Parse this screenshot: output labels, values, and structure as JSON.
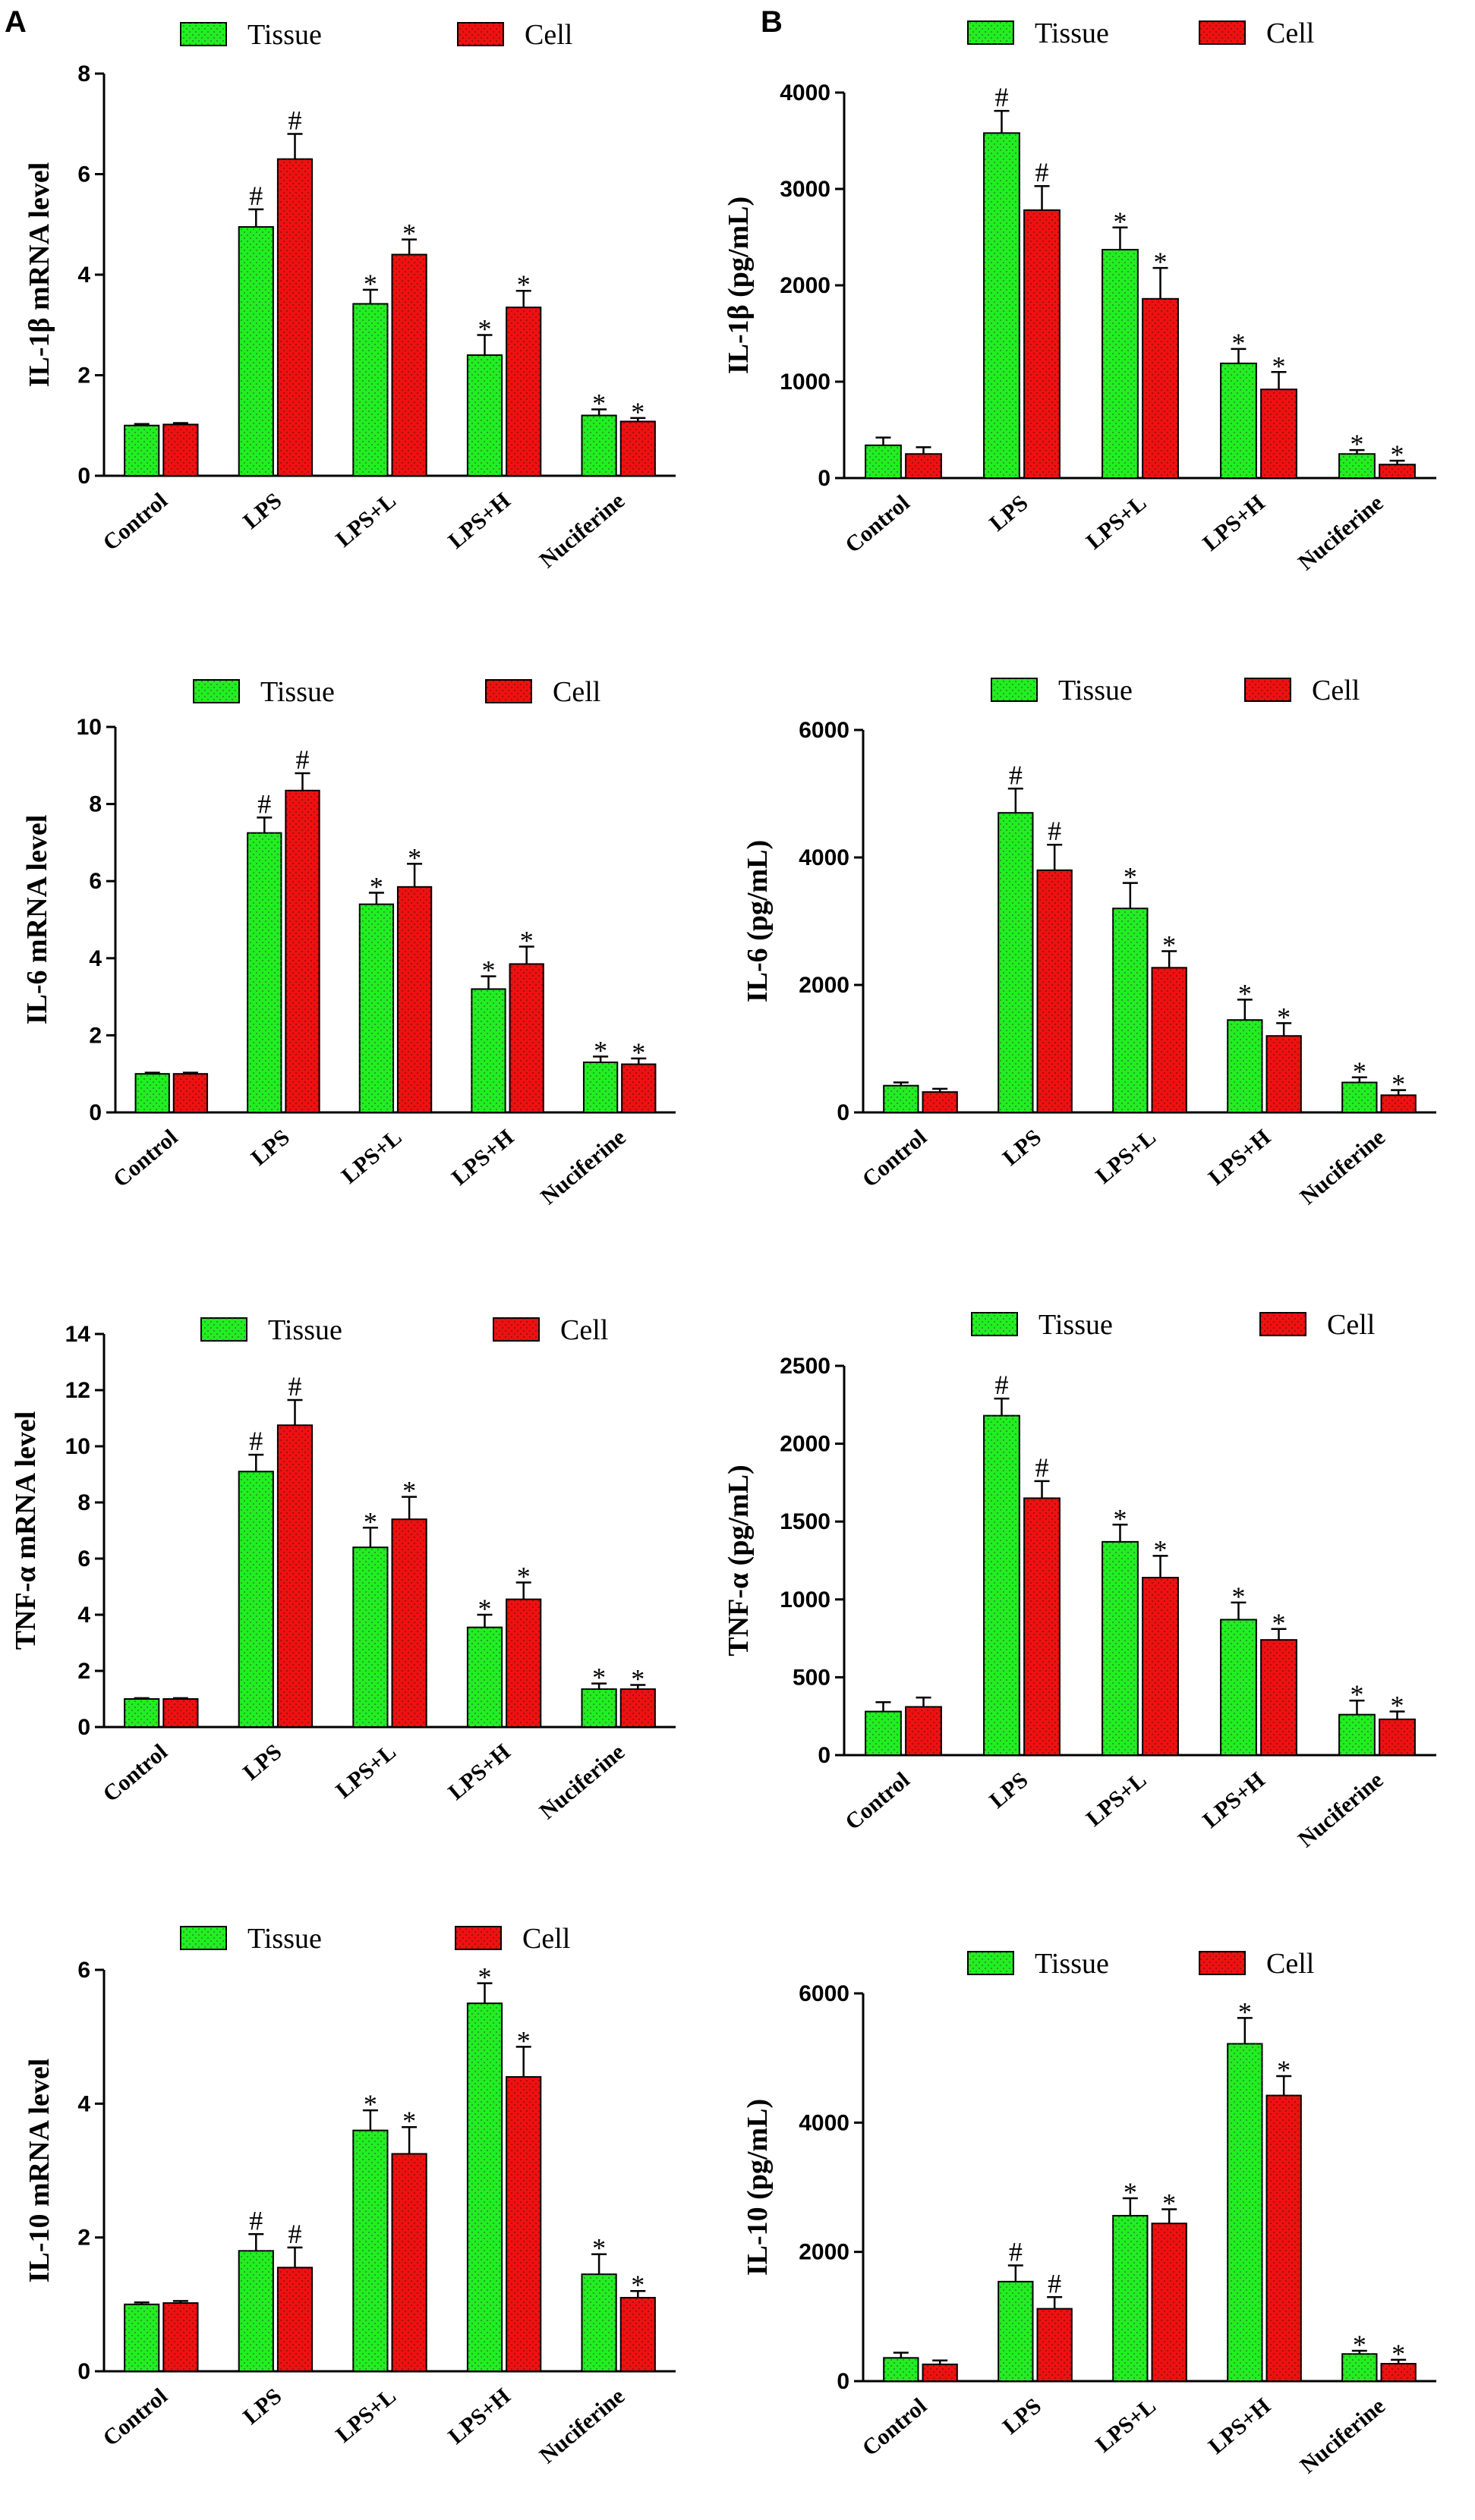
{
  "panel_labels": [
    "A",
    "B"
  ],
  "colors": {
    "tissue": "#22ee22",
    "cell": "#ee1111",
    "axis": "#000000"
  },
  "chart_data": [
    {
      "id": "a1",
      "type": "bar",
      "panel": "A",
      "categories": [
        "Control",
        "LPS",
        "LPS+L",
        "LPS+H",
        "Nuciferine"
      ],
      "ylabel": "IL-1β  mRNA level",
      "ylim": [
        0,
        8
      ],
      "yticks": [
        0,
        2,
        4,
        6,
        8
      ],
      "series": [
        {
          "name": "Tissue",
          "values": [
            1.0,
            4.95,
            3.42,
            2.4,
            1.2
          ],
          "errors": [
            0.03,
            0.35,
            0.28,
            0.4,
            0.12
          ],
          "markers": [
            "",
            "#",
            "*",
            "*",
            "*"
          ]
        },
        {
          "name": "Cell",
          "values": [
            1.02,
            6.3,
            4.4,
            3.35,
            1.08
          ],
          "errors": [
            0.03,
            0.5,
            0.3,
            0.33,
            0.07
          ],
          "markers": [
            "",
            "#",
            "*",
            "*",
            "*"
          ]
        }
      ]
    },
    {
      "id": "b1",
      "type": "bar",
      "panel": "B",
      "categories": [
        "Control",
        "LPS",
        "LPS+L",
        "LPS+H",
        "Nuciferine"
      ],
      "ylabel": "IL-1β  (pg/mL)",
      "ylim": [
        0,
        4000
      ],
      "yticks": [
        0,
        1000,
        2000,
        3000,
        4000
      ],
      "series": [
        {
          "name": "Tissue",
          "values": [
            340,
            3580,
            2370,
            1190,
            250
          ],
          "errors": [
            80,
            230,
            230,
            150,
            40
          ],
          "markers": [
            "",
            "#",
            "*",
            "*",
            "*"
          ]
        },
        {
          "name": "Cell",
          "values": [
            250,
            2780,
            1860,
            920,
            140
          ],
          "errors": [
            70,
            250,
            320,
            180,
            40
          ],
          "markers": [
            "",
            "#",
            "*",
            "*",
            "*"
          ]
        }
      ]
    },
    {
      "id": "a2",
      "type": "bar",
      "panel": "A",
      "categories": [
        "Control",
        "LPS",
        "LPS+L",
        "LPS+H",
        "Nuciferine"
      ],
      "ylabel": "IL-6 mRNA level",
      "ylim": [
        0,
        10
      ],
      "yticks": [
        0,
        2,
        4,
        6,
        8,
        10
      ],
      "series": [
        {
          "name": "Tissue",
          "values": [
            1.0,
            7.25,
            5.4,
            3.2,
            1.3
          ],
          "errors": [
            0.03,
            0.4,
            0.3,
            0.33,
            0.15
          ],
          "markers": [
            "",
            "#",
            "*",
            "*",
            "*"
          ]
        },
        {
          "name": "Cell",
          "values": [
            1.0,
            8.35,
            5.85,
            3.85,
            1.25
          ],
          "errors": [
            0.03,
            0.45,
            0.6,
            0.45,
            0.15
          ],
          "markers": [
            "",
            "#",
            "*",
            "*",
            "*"
          ]
        }
      ]
    },
    {
      "id": "b2",
      "type": "bar",
      "panel": "B",
      "categories": [
        "Control",
        "LPS",
        "LPS+L",
        "LPS+H",
        "Nuciferine"
      ],
      "ylabel": "IL-6 (pg/mL)",
      "ylim": [
        0,
        6000
      ],
      "yticks": [
        0,
        2000,
        4000,
        6000
      ],
      "series": [
        {
          "name": "Tissue",
          "values": [
            420,
            4700,
            3200,
            1450,
            470
          ],
          "errors": [
            50,
            380,
            400,
            320,
            80
          ],
          "markers": [
            "",
            "#",
            "*",
            "*",
            "*"
          ]
        },
        {
          "name": "Cell",
          "values": [
            320,
            3800,
            2270,
            1200,
            270
          ],
          "errors": [
            50,
            400,
            260,
            200,
            80
          ],
          "markers": [
            "",
            "#",
            "*",
            "*",
            "*"
          ]
        }
      ]
    },
    {
      "id": "a3",
      "type": "bar",
      "panel": "A",
      "categories": [
        "Control",
        "LPS",
        "LPS+L",
        "LPS+H",
        "Nuciferine"
      ],
      "ylabel": "TNF-α  mRNA level",
      "ylim": [
        0,
        14
      ],
      "yticks": [
        0,
        2,
        4,
        6,
        8,
        10,
        12,
        14
      ],
      "series": [
        {
          "name": "Tissue",
          "values": [
            1.0,
            9.1,
            6.4,
            3.55,
            1.35
          ],
          "errors": [
            0.03,
            0.6,
            0.7,
            0.45,
            0.2
          ],
          "markers": [
            "",
            "#",
            "*",
            "*",
            "*"
          ]
        },
        {
          "name": "Cell",
          "values": [
            1.0,
            10.75,
            7.4,
            4.55,
            1.35
          ],
          "errors": [
            0.03,
            0.9,
            0.8,
            0.6,
            0.15
          ],
          "markers": [
            "",
            "#",
            "*",
            "*",
            "*"
          ]
        }
      ]
    },
    {
      "id": "b3",
      "type": "bar",
      "panel": "B",
      "categories": [
        "Control",
        "LPS",
        "LPS+L",
        "LPS+H",
        "Nuciferine"
      ],
      "ylabel": "TNF-α  (pg/mL)",
      "ylim": [
        0,
        2500
      ],
      "yticks": [
        0,
        500,
        1000,
        1500,
        2000,
        2500
      ],
      "series": [
        {
          "name": "Tissue",
          "values": [
            280,
            2180,
            1370,
            870,
            260
          ],
          "errors": [
            60,
            110,
            110,
            110,
            90
          ],
          "markers": [
            "",
            "#",
            "*",
            "*",
            "*"
          ]
        },
        {
          "name": "Cell",
          "values": [
            310,
            1650,
            1140,
            740,
            230
          ],
          "errors": [
            60,
            110,
            140,
            70,
            50
          ],
          "markers": [
            "",
            "#",
            "*",
            "*",
            "*"
          ]
        }
      ]
    },
    {
      "id": "a4",
      "type": "bar",
      "panel": "A",
      "categories": [
        "Control",
        "LPS",
        "LPS+L",
        "LPS+H",
        "Nuciferine"
      ],
      "ylabel": "IL-10 mRNA level",
      "ylim": [
        0,
        6
      ],
      "yticks": [
        0,
        2,
        4,
        6
      ],
      "series": [
        {
          "name": "Tissue",
          "values": [
            1.0,
            1.8,
            3.6,
            5.5,
            1.45
          ],
          "errors": [
            0.03,
            0.25,
            0.3,
            0.3,
            0.3
          ],
          "markers": [
            "",
            "#",
            "*",
            "*",
            "*"
          ]
        },
        {
          "name": "Cell",
          "values": [
            1.02,
            1.55,
            3.25,
            4.4,
            1.1
          ],
          "errors": [
            0.03,
            0.3,
            0.4,
            0.45,
            0.1
          ],
          "markers": [
            "",
            "#",
            "*",
            "*",
            "*"
          ]
        }
      ]
    },
    {
      "id": "b4",
      "type": "bar",
      "panel": "B",
      "categories": [
        "Control",
        "LPS",
        "LPS+L",
        "LPS+H",
        "Nuciferine"
      ],
      "ylabel": "IL-10 (pg/mL)",
      "ylim": [
        0,
        6000
      ],
      "yticks": [
        0,
        2000,
        4000,
        6000
      ],
      "series": [
        {
          "name": "Tissue",
          "values": [
            360,
            1540,
            2560,
            5220,
            420
          ],
          "errors": [
            80,
            250,
            270,
            400,
            50
          ],
          "markers": [
            "",
            "#",
            "*",
            "*",
            "*"
          ]
        },
        {
          "name": "Cell",
          "values": [
            260,
            1120,
            2440,
            4420,
            270
          ],
          "errors": [
            60,
            180,
            220,
            300,
            60
          ],
          "markers": [
            "",
            "#",
            "*",
            "*",
            "*"
          ]
        }
      ]
    }
  ]
}
